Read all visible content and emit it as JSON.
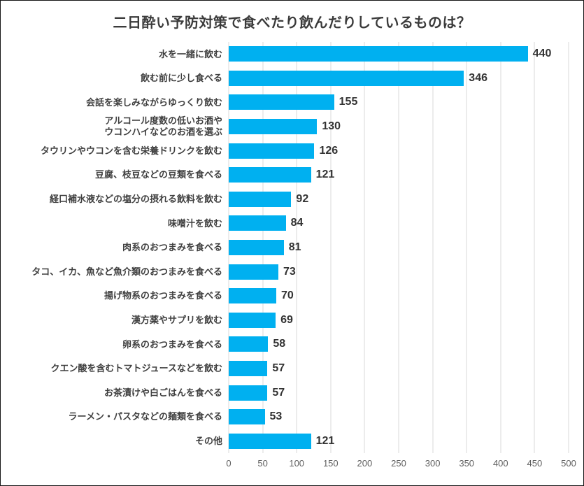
{
  "chart_data": {
    "type": "bar",
    "orientation": "horizontal",
    "title": "二日酔い予防対策で食べたり飲んだりしているものは？",
    "categories": [
      "水を一緒に飲む",
      "飲む前に少し食べる",
      "会話を楽しみながらゆっくり飲む",
      "アルコール度数の低いお酒や\nウコンハイなどのお酒を選ぶ",
      "タウリンやウコンを含む栄養ドリンクを飲む",
      "豆腐、枝豆などの豆類を食べる",
      "経口補水液などの塩分の摂れる飲料を飲む",
      "味噌汁を飲む",
      "肉系のおつまみを食べる",
      "タコ、イカ、魚など魚介類のおつまみを食べる",
      "揚げ物系のおつまみを食べる",
      "漢方薬やサプリを飲む",
      "卵系のおつまみを食べる",
      "クエン酸を含むトマトジュースなどを飲む",
      "お茶漬けや白ごはんを食べる",
      "ラーメン・パスタなどの麺類を食べる",
      "その他"
    ],
    "values": [
      440,
      346,
      155,
      130,
      126,
      121,
      92,
      84,
      81,
      73,
      70,
      69,
      58,
      57,
      57,
      53,
      121
    ],
    "xlim": [
      0,
      500
    ],
    "x_ticks": [
      "0",
      "50",
      "100",
      "150",
      "200",
      "250",
      "300",
      "350",
      "400",
      "450",
      "500"
    ],
    "grid": true,
    "legend": false,
    "value_labels": true
  },
  "colors": {
    "bar": "#00B0F0",
    "gridline": "#d9d9d9",
    "title_text": "#3b3b3b",
    "label_text": "#3f3f3f",
    "value_text": "#333333",
    "tick_text": "#5f5f5f",
    "frame_border": "#161616",
    "background": "#ffffff"
  }
}
